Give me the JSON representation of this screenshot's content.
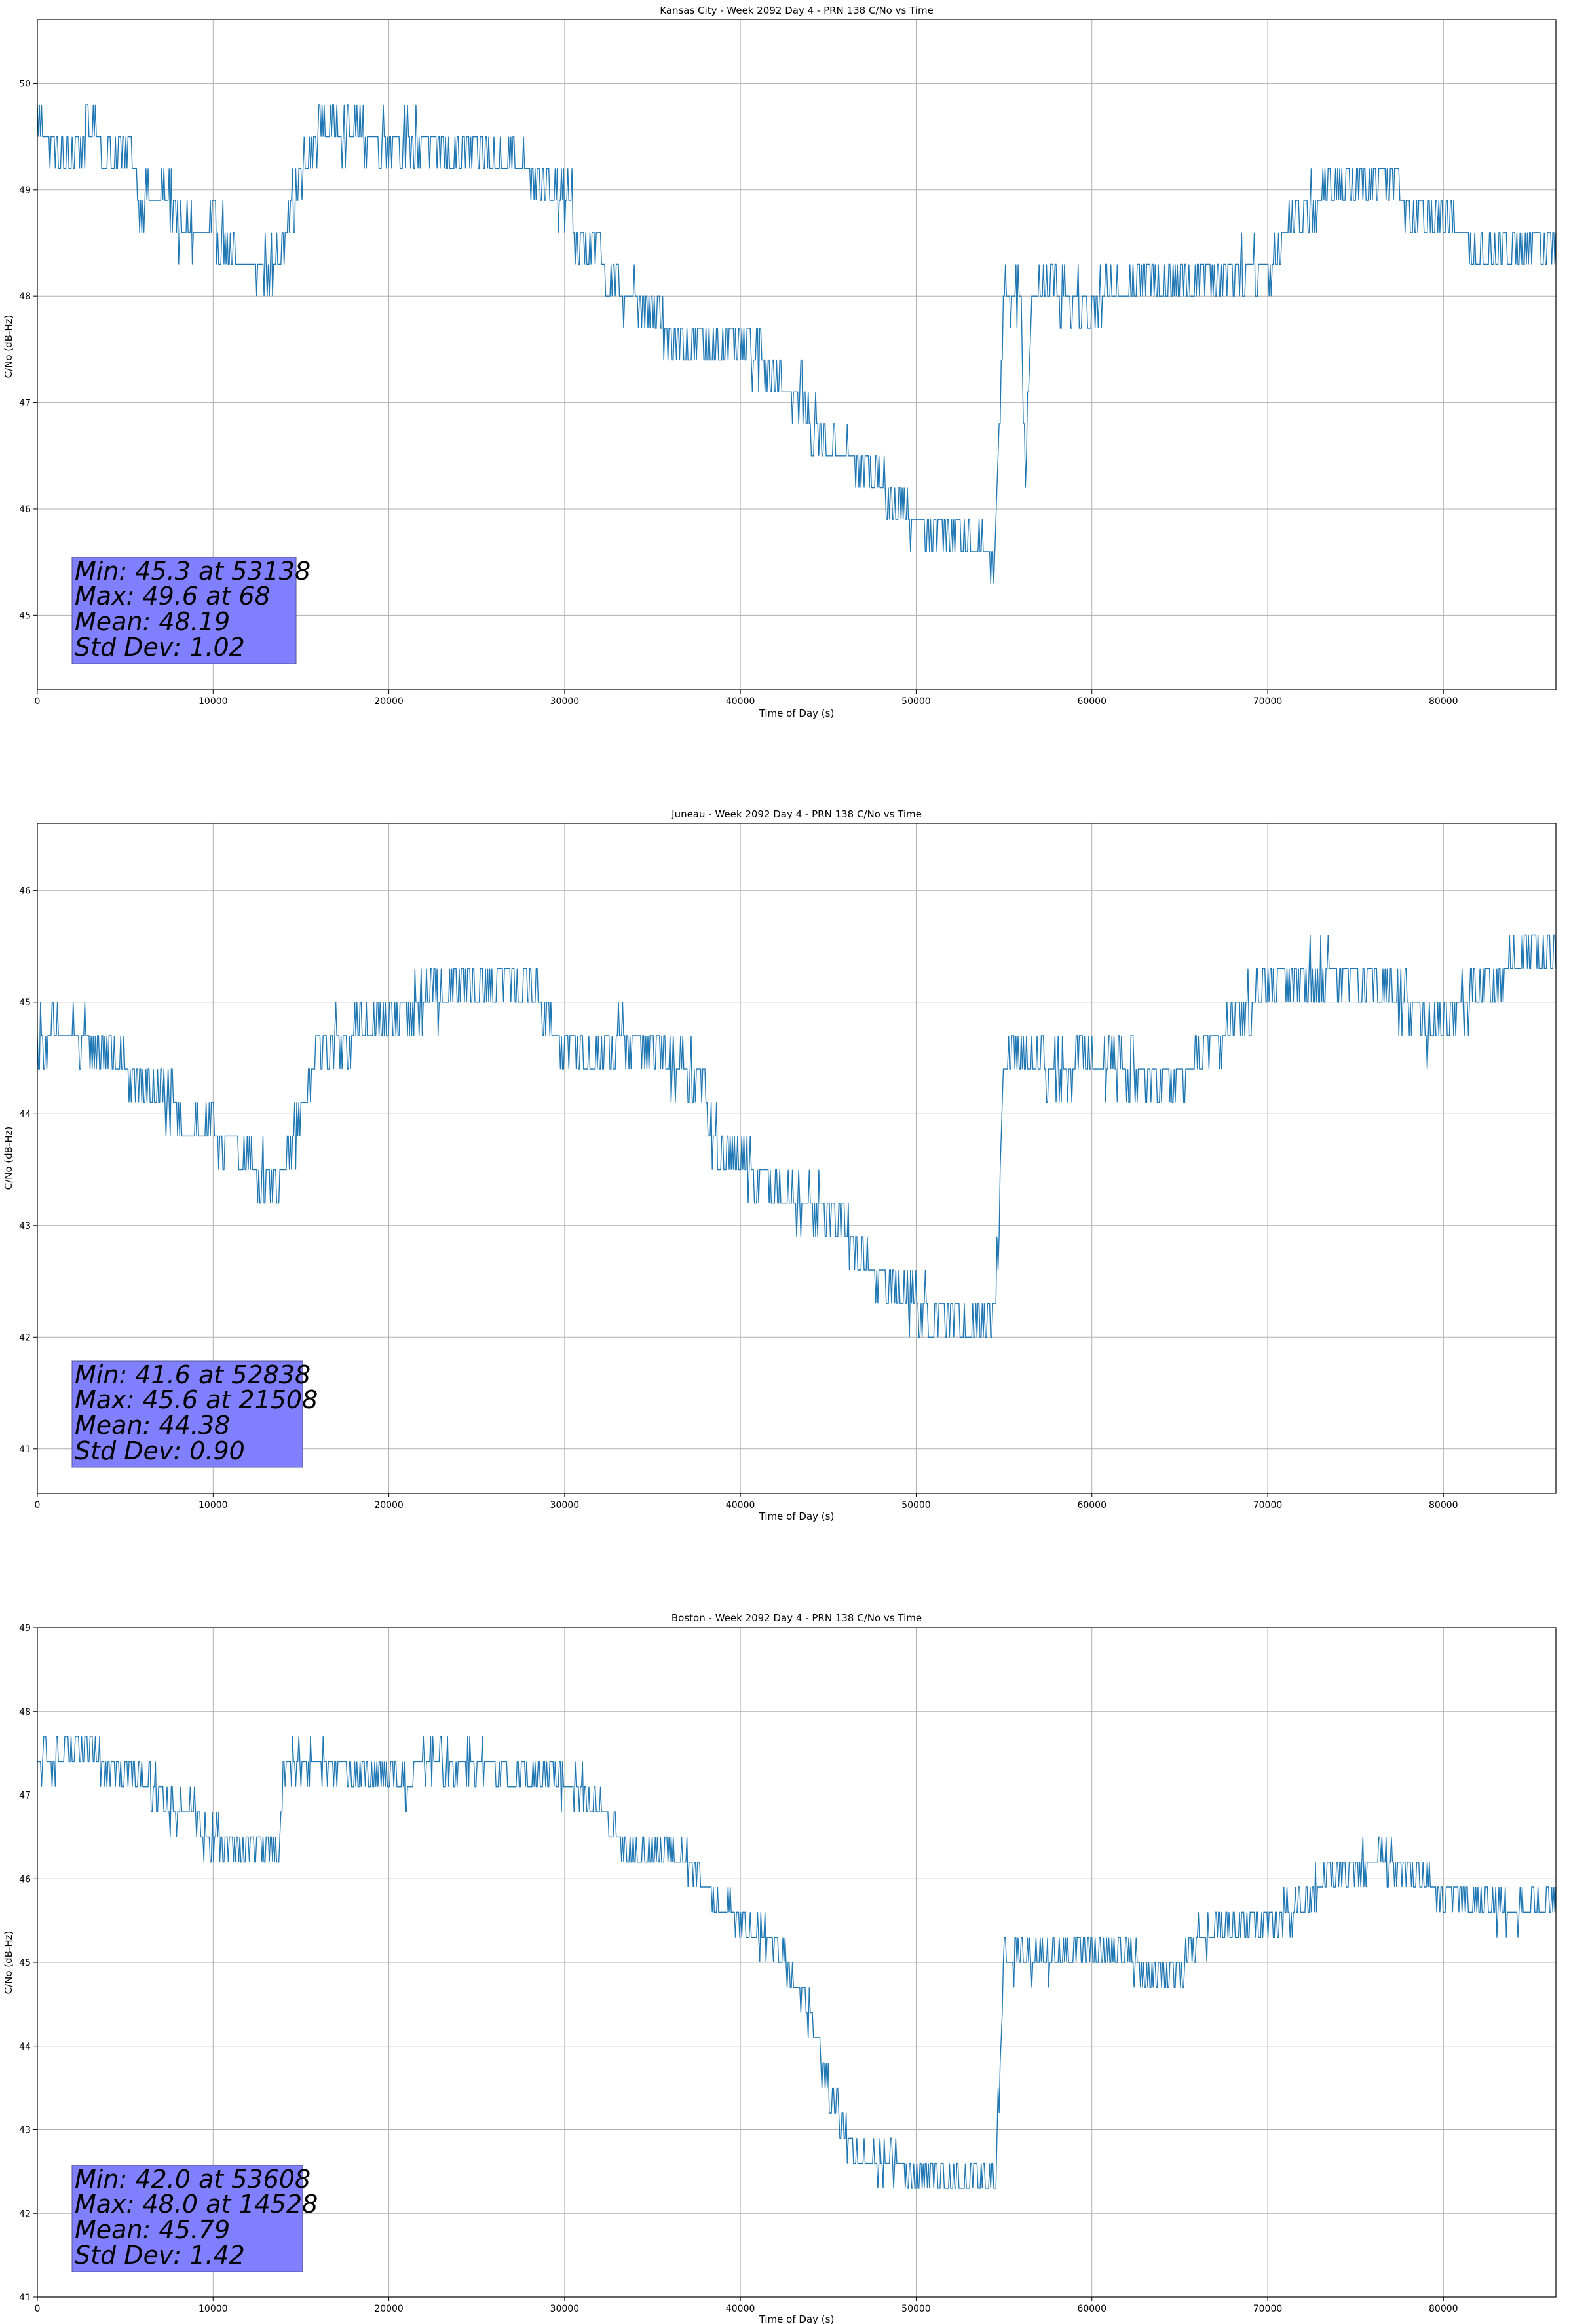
{
  "figure": {
    "background": "#ffffff",
    "line_color": "#1f77b4",
    "grid_color": "#b0b0b0",
    "stats_box_color": "#8080ff"
  },
  "chart_data": [
    {
      "type": "line",
      "title": "Kansas City - Week 2092 Day 4 - PRN 138 C/No vs Time",
      "xlabel": "Time of Day (s)",
      "ylabel": "C/No (dB-Hz)",
      "xlim": [
        0,
        86400
      ],
      "ylim": [
        44.3,
        50.6
      ],
      "xticks": [
        0,
        10000,
        20000,
        30000,
        40000,
        50000,
        60000,
        70000,
        80000
      ],
      "yticks": [
        45,
        46,
        47,
        48,
        49,
        50
      ],
      "grid": true,
      "stats": [
        "Min: 45.3 at 53138",
        "Max: 49.6 at 68",
        "Mean: 48.19",
        "Std Dev: 1.02"
      ],
      "series": [
        {
          "values_x": [
            0,
            1500,
            3500,
            3700,
            5600,
            5800,
            7800,
            8000,
            10600,
            11000,
            13600,
            14000,
            16000,
            20000,
            25000,
            27000,
            29000,
            29200,
            30400,
            30600,
            32000,
            32400,
            34000,
            36000,
            38000,
            40000,
            41500,
            42000,
            43500,
            44000,
            46000,
            46500,
            48000,
            48500,
            50000,
            50400,
            52000,
            54000,
            54400,
            55000,
            56000,
            56200,
            56600,
            57000,
            60000,
            62000,
            63000,
            66000,
            70000,
            70500,
            71000,
            72000,
            74000,
            75000,
            77000,
            78500,
            80000,
            81500,
            82000,
            83000,
            84500,
            86400
          ],
          "values_y": [
            49.6,
            49.3,
            49.6,
            49.3,
            49.3,
            48.9,
            48.9,
            48.6,
            48.6,
            48.3,
            48.3,
            48.6,
            49.6,
            49.5,
            49.3,
            49.3,
            49.1,
            48.9,
            48.9,
            48.5,
            48.5,
            48.1,
            48.0,
            47.7,
            47.5,
            47.5,
            47.4,
            47.2,
            47.1,
            46.8,
            46.5,
            46.4,
            46.3,
            46.1,
            45.9,
            45.8,
            45.8,
            45.7,
            45.4,
            48.1,
            47.9,
            46.3,
            48.0,
            48.1,
            47.9,
            48.1,
            48.2,
            48.2,
            48.3,
            48.4,
            48.6,
            48.8,
            49.0,
            49.1,
            49.1,
            48.8,
            48.8,
            48.5,
            48.4,
            48.4,
            48.5,
            48.4
          ]
        }
      ]
    },
    {
      "type": "line",
      "title": "Juneau - Week 2092 Day 4 - PRN 138 C/No vs Time",
      "xlabel": "Time of Day (s)",
      "ylabel": "C/No (dB-Hz)",
      "xlim": [
        0,
        86400
      ],
      "ylim": [
        40.6,
        46.6
      ],
      "xticks": [
        0,
        10000,
        20000,
        30000,
        40000,
        50000,
        60000,
        70000,
        80000
      ],
      "yticks": [
        41,
        42,
        43,
        44,
        45,
        46
      ],
      "grid": true,
      "stats": [
        "Min: 41.6 at 52838",
        "Max: 45.6 at 21508",
        "Mean: 44.38",
        "Std Dev: 0.90"
      ],
      "series": [
        {
          "values_x": [
            0,
            2000,
            4500,
            5500,
            7500,
            8500,
            10500,
            12500,
            14000,
            16000,
            20000,
            21500,
            24000,
            27000,
            28500,
            29000,
            31000,
            34000,
            35000,
            36000,
            38000,
            38300,
            40000,
            41500,
            44000,
            45500,
            46500,
            48000,
            50000,
            51000,
            54500,
            55000,
            58000,
            60000,
            62000,
            63000,
            65000,
            66000,
            68000,
            69000,
            71000,
            72000,
            75000,
            77000,
            78500,
            79000,
            80500,
            81000,
            83000,
            84000,
            86400
          ],
          "values_y": [
            44.7,
            44.7,
            44.5,
            44.3,
            44.1,
            43.9,
            43.8,
            43.5,
            43.4,
            44.6,
            44.8,
            45.0,
            45.1,
            45.2,
            45.1,
            44.8,
            44.5,
            44.7,
            44.6,
            44.4,
            44.3,
            43.8,
            43.6,
            43.4,
            43.2,
            43.0,
            42.8,
            42.5,
            42.3,
            42.2,
            42.1,
            44.5,
            44.4,
            44.5,
            44.4,
            44.3,
            44.3,
            44.5,
            44.8,
            45.0,
            45.2,
            45.3,
            45.2,
            45.1,
            44.9,
            44.7,
            44.8,
            45.0,
            45.2,
            45.4,
            45.4
          ]
        }
      ]
    },
    {
      "type": "line",
      "title": "Boston - Week 2092 Day 4 - PRN 138 C/No vs Time",
      "xlabel": "Time of Day (s)",
      "ylabel": "C/No (dB-Hz)",
      "xlim": [
        0,
        86400
      ],
      "ylim": [
        41.0,
        49.0
      ],
      "xticks": [
        0,
        10000,
        20000,
        30000,
        40000,
        50000,
        60000,
        70000,
        80000
      ],
      "yticks": [
        41,
        42,
        43,
        44,
        45,
        46,
        47,
        48,
        49
      ],
      "grid": true,
      "stats": [
        "Min: 42.0 at 53608",
        "Max: 48.0 at 14528",
        "Mean: 45.79",
        "Std Dev: 1.42"
      ],
      "series": [
        {
          "values_x": [
            0,
            2000,
            4500,
            5500,
            7000,
            7200,
            9000,
            9500,
            12000,
            13800,
            14000,
            14500,
            17000,
            18000,
            20000,
            21000,
            22000,
            25000,
            27000,
            29000,
            31000,
            31500,
            33000,
            33500,
            36000,
            37000,
            38000,
            39000,
            40000,
            41000,
            42000,
            42500,
            43000,
            43500,
            44000,
            44300,
            44600,
            45000,
            45500,
            46000,
            46500,
            48000,
            51000,
            54000,
            54500,
            55000,
            57000,
            60000,
            62000,
            63000,
            65000,
            66000,
            68000,
            70000,
            72000,
            74000,
            77000,
            78000,
            80000,
            82000,
            84000,
            86400
          ],
          "values_y": [
            47.4,
            47.5,
            47.4,
            47.2,
            47.1,
            46.8,
            46.8,
            46.5,
            46.4,
            46.4,
            47.3,
            47.4,
            47.4,
            47.2,
            47.2,
            47.1,
            47.4,
            47.4,
            47.2,
            47.2,
            47.1,
            46.9,
            46.6,
            46.3,
            46.3,
            46.2,
            45.9,
            45.7,
            45.5,
            45.3,
            45.2,
            45.1,
            44.8,
            44.6,
            44.3,
            44.1,
            43.8,
            43.5,
            43.2,
            42.9,
            42.6,
            42.6,
            42.5,
            42.4,
            42.3,
            45.1,
            45.0,
            45.2,
            45.1,
            44.9,
            44.9,
            45.3,
            45.4,
            45.5,
            45.7,
            46.1,
            46.2,
            46.1,
            45.8,
            45.7,
            45.6,
            45.8
          ]
        }
      ]
    }
  ]
}
